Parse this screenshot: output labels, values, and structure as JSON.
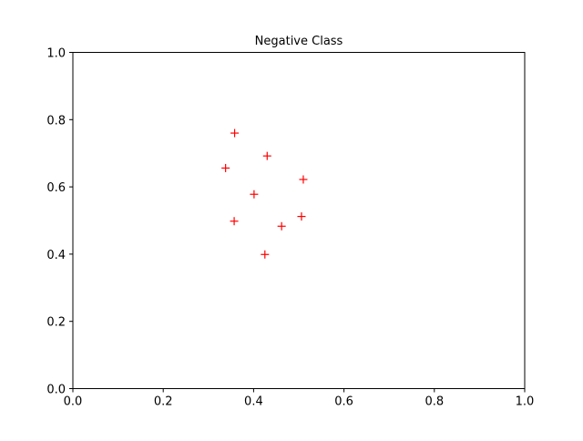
{
  "chart_data": {
    "type": "scatter",
    "title": "Negative Class",
    "xlabel": "",
    "ylabel": "",
    "xlim": [
      0,
      1
    ],
    "ylim": [
      0,
      1
    ],
    "xticks": [
      "0.0",
      "0.2",
      "0.4",
      "0.6",
      "0.8",
      "1.0"
    ],
    "yticks": [
      "0.0",
      "0.2",
      "0.4",
      "0.6",
      "0.8",
      "1.0"
    ],
    "grid": false,
    "legend": "none",
    "marker": "plus",
    "color": "#ff0000",
    "series": [
      {
        "x": [
          0.358,
          0.43,
          0.338,
          0.51,
          0.401,
          0.357,
          0.506,
          0.462,
          0.425
        ],
        "y": [
          0.76,
          0.692,
          0.656,
          0.622,
          0.578,
          0.498,
          0.512,
          0.483,
          0.399
        ]
      }
    ]
  }
}
